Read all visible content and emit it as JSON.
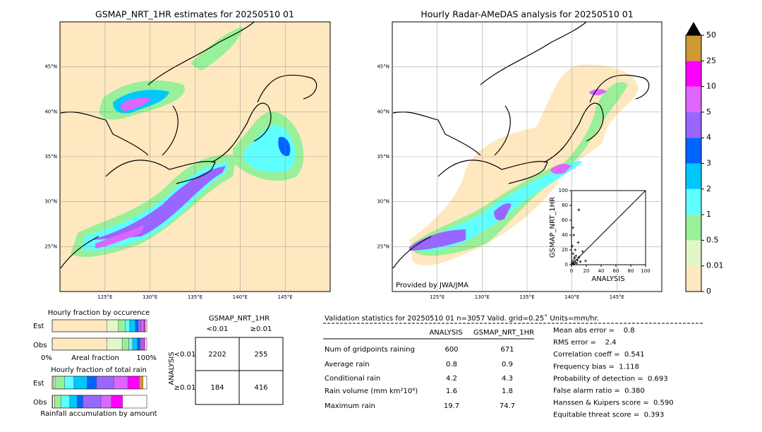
{
  "maps": [
    {
      "title": "GSMAP_NRT_1HR estimates for 20250510 01"
    },
    {
      "title": "Hourly Radar-AMeDAS analysis for 20250510 01",
      "credit": "Provided by JWA/JMA"
    }
  ],
  "lon_ticks": [
    {
      "value": 125,
      "label": "125°E"
    },
    {
      "value": 130,
      "label": "130°E"
    },
    {
      "value": 135,
      "label": "135°E"
    },
    {
      "value": 140,
      "label": "140°E"
    },
    {
      "value": 145,
      "label": "145°E"
    }
  ],
  "lat_ticks": [
    {
      "value": 45,
      "label": "45°N"
    },
    {
      "value": 40,
      "label": "40°N"
    },
    {
      "value": 35,
      "label": "35°N"
    },
    {
      "value": 30,
      "label": "30°N"
    },
    {
      "value": 25,
      "label": "25°N"
    }
  ],
  "lon_lim": [
    120,
    150
  ],
  "lat_lim": [
    20,
    50
  ],
  "colorbar": {
    "levels": [
      0,
      0.01,
      0.5,
      1,
      2,
      3,
      4,
      5,
      10,
      25,
      50
    ],
    "colors": [
      "#fee8c0",
      "#e0f8c8",
      "#98f098",
      "#60ffff",
      "#00c8ff",
      "#0064ff",
      "#9966ff",
      "#dd66ff",
      "#ff00ff",
      "#cc9933"
    ],
    "over_color": "#000000"
  },
  "inset": {
    "xlabel": "ANALYSIS",
    "ylabel": "GSMAP_NRT_1HR",
    "xlim": [
      0,
      100
    ],
    "ylim": [
      0,
      100
    ],
    "xticks": [
      0,
      20,
      40,
      60,
      80,
      100
    ],
    "yticks": [
      0,
      20,
      40,
      60,
      80,
      100
    ],
    "points": [
      [
        1,
        2
      ],
      [
        2,
        5
      ],
      [
        3,
        1
      ],
      [
        4,
        8
      ],
      [
        5,
        3
      ],
      [
        6,
        12
      ],
      [
        2,
        15
      ],
      [
        1,
        25
      ],
      [
        3,
        40
      ],
      [
        2,
        50
      ],
      [
        8,
        6
      ],
      [
        10,
        10
      ],
      [
        12,
        4
      ],
      [
        15,
        18
      ],
      [
        19,
        5
      ],
      [
        5,
        20
      ],
      [
        7,
        2
      ],
      [
        10,
        74
      ],
      [
        9,
        30
      ],
      [
        4,
        10
      ]
    ]
  },
  "fractions": {
    "occurrence": {
      "title": "Hourly fraction by occurence",
      "est_label": "Est",
      "obs_label": "Obs",
      "left": "0%",
      "center": "Areal fraction",
      "right": "100%",
      "est": [
        0.58,
        0.12,
        0.075,
        0.045,
        0.06,
        0.03,
        0.03,
        0.03,
        0.01,
        0.005
      ],
      "obs": [
        0.58,
        0.16,
        0.07,
        0.04,
        0.05,
        0.03,
        0.02,
        0.02,
        0.01,
        0
      ]
    },
    "total_rain": {
      "title": "Hourly fraction of total rain",
      "est_label": "Est",
      "obs_label": "Obs",
      "bottom": "Rainfall accumulation by amount",
      "est": [
        0.01,
        0.02,
        0.1,
        0.1,
        0.14,
        0.1,
        0.18,
        0.15,
        0.12,
        0.04
      ],
      "obs": [
        0.005,
        0.02,
        0.07,
        0.09,
        0.08,
        0.06,
        0.19,
        0.11,
        0.12,
        0
      ]
    }
  },
  "contingency": {
    "title": "GSMAP_NRT_1HR",
    "col_labels": [
      "<0.01",
      "≥0.01"
    ],
    "row_title": "ANALYSIS",
    "row_labels": [
      "<0.01",
      "≥0.01"
    ],
    "cells": [
      [
        "2202",
        "255"
      ],
      [
        "184",
        "416"
      ]
    ]
  },
  "stats": {
    "title": "Validation statistics for 20250510 01  n=3057 Valid. grid=0.25˚ Units=mm/hr.",
    "headers": [
      "ANALYSIS",
      "GSMAP_NRT_1HR"
    ],
    "rows": [
      [
        "Num of gridpoints raining",
        "600",
        "671"
      ],
      [
        "Average rain",
        "0.8",
        "0.9"
      ],
      [
        "Conditional rain",
        "4.2",
        "4.3"
      ],
      [
        "Rain volume (mm km²10⁶)",
        "1.6",
        "1.8"
      ],
      [
        "Maximum rain",
        "19.7",
        "74.7"
      ]
    ],
    "scores": [
      "Mean abs error =    0.8",
      "RMS error =    2.4",
      "Correlation coeff =  0.541",
      "Frequency bias =  1.118",
      "Probability of detection =  0.693",
      "False alarm ratio =  0.380",
      "Hanssen & Kuipers score =  0.590",
      "Equitable threat score =  0.393"
    ]
  }
}
